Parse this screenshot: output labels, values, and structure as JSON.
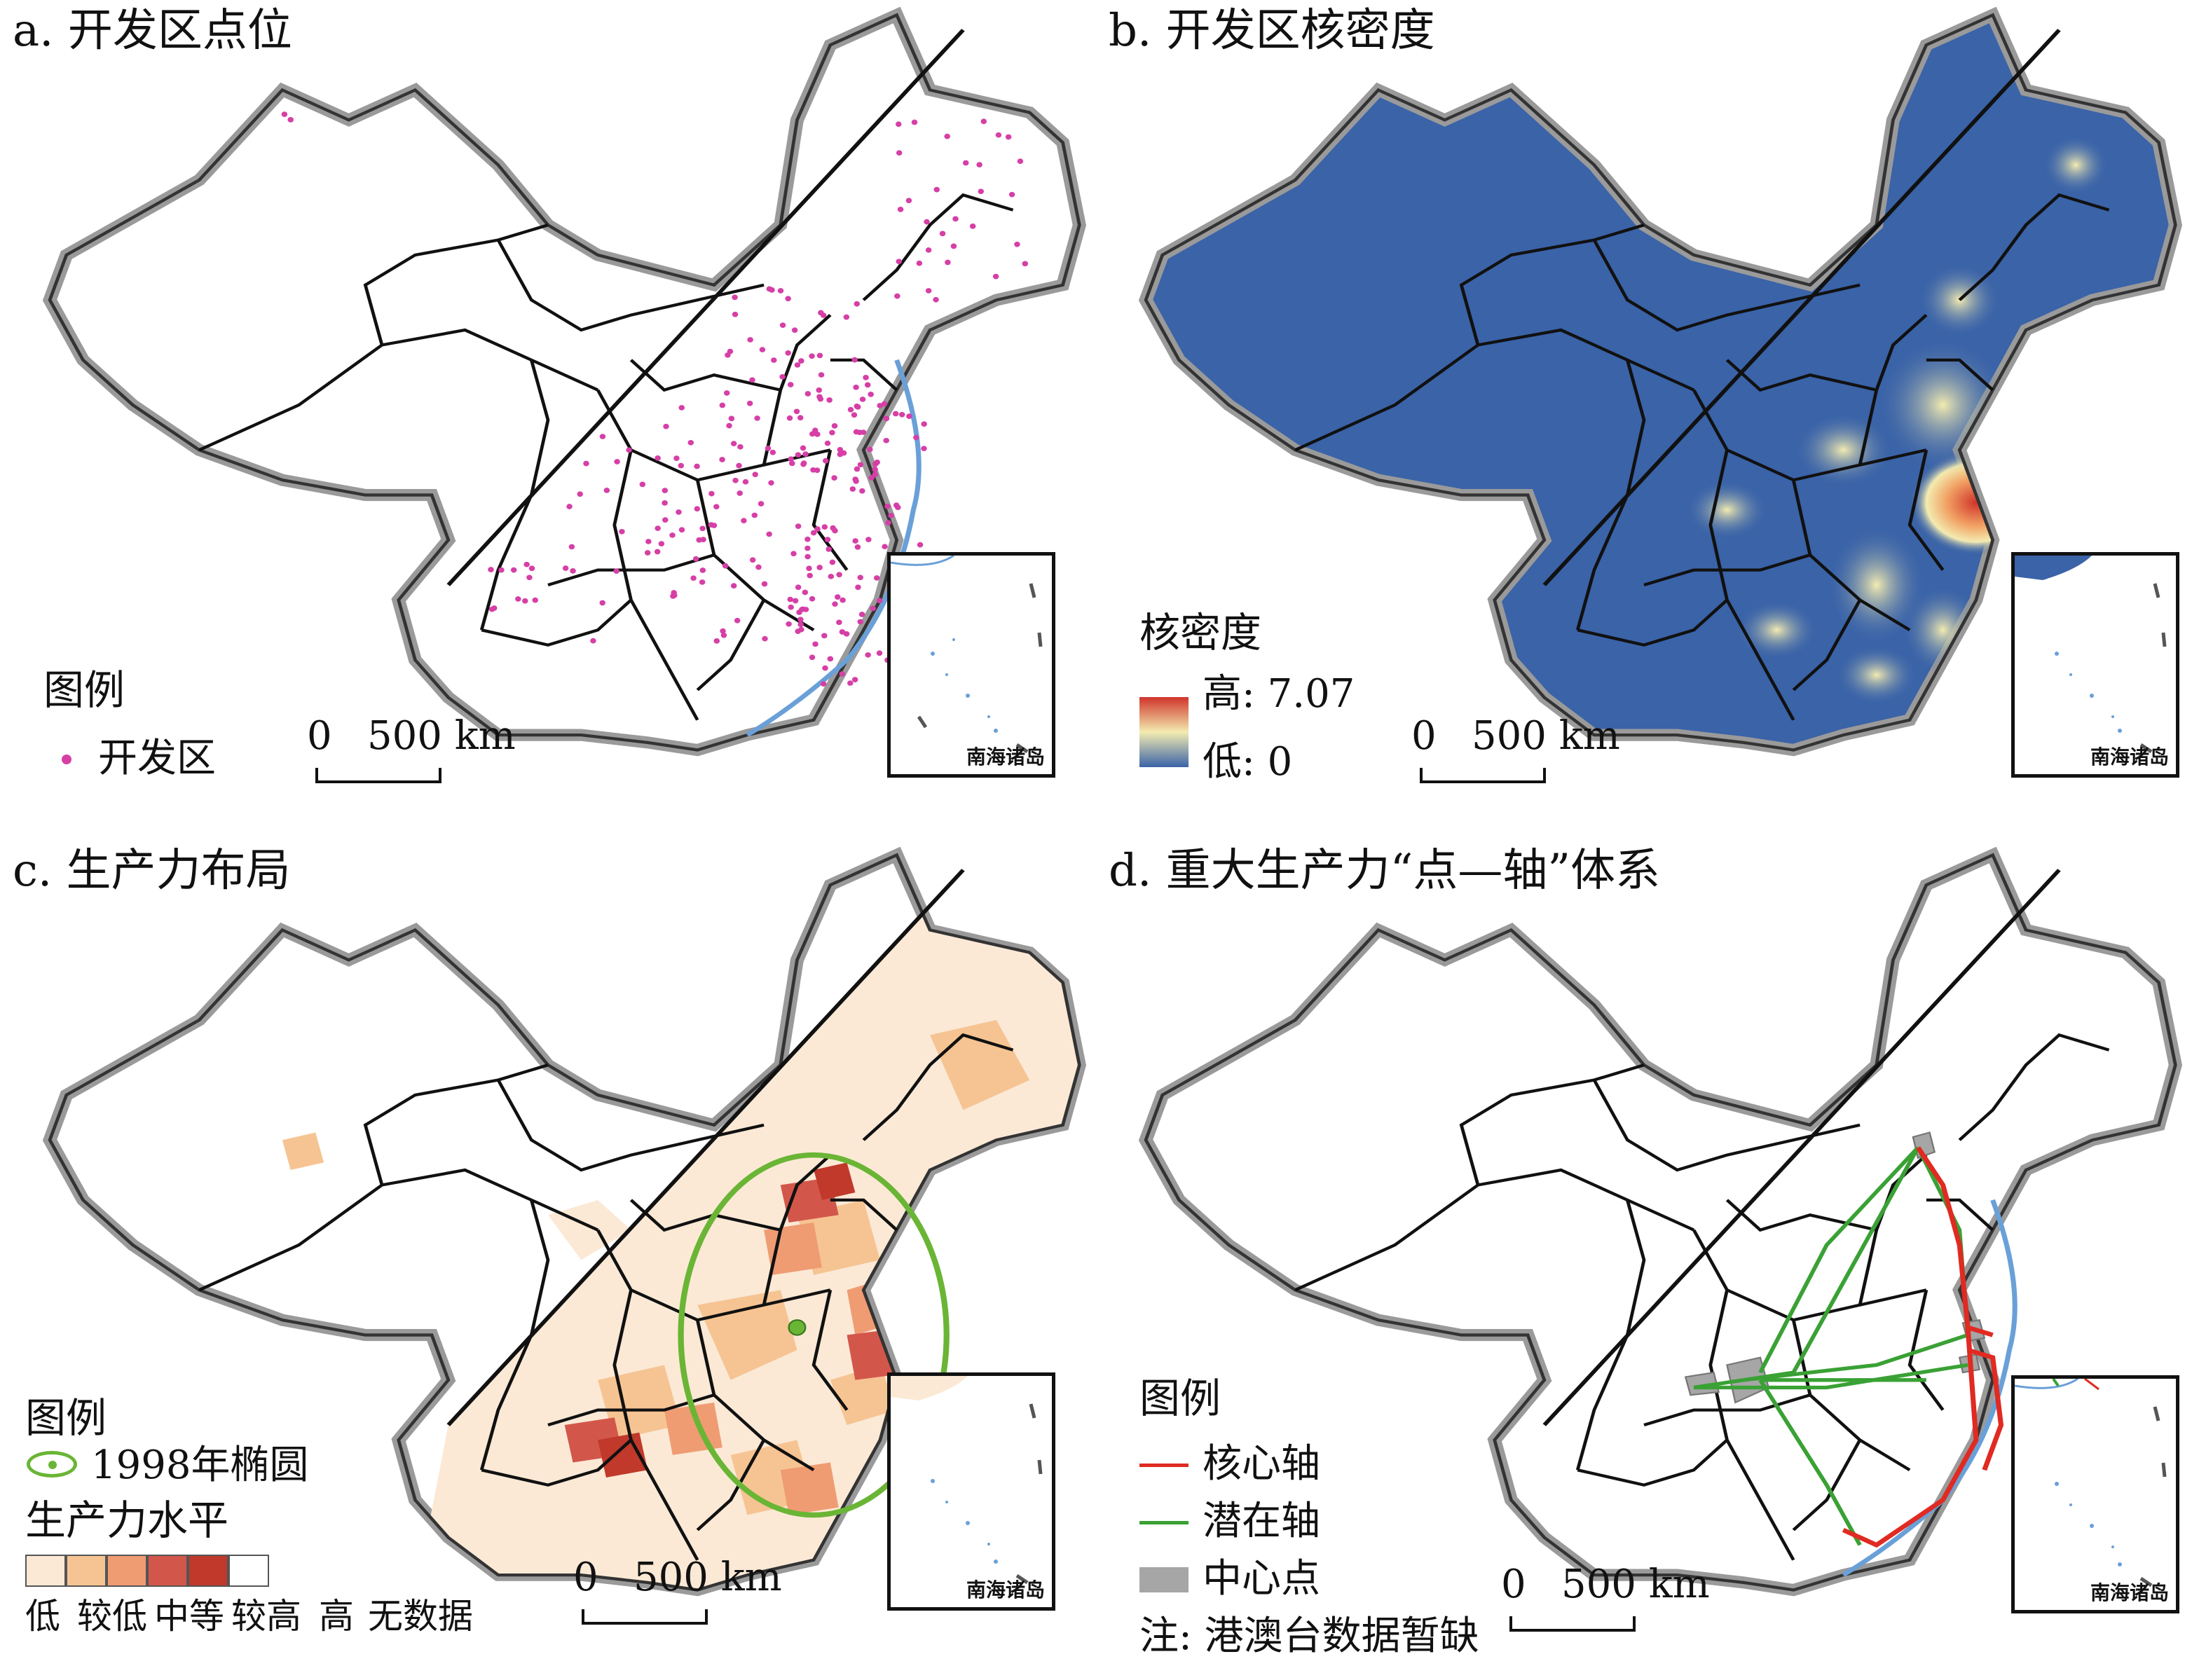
{
  "figure": {
    "panels": [
      {
        "id": "a",
        "title": "a. 开发区点位"
      },
      {
        "id": "b",
        "title": "b. 开发区核密度"
      },
      {
        "id": "c",
        "title": "c. 生产力布局"
      },
      {
        "id": "d",
        "title": "d. 重大生产力“点—轴”体系"
      }
    ]
  },
  "common": {
    "inset_label": "南海诸岛",
    "scale_zero": "0",
    "scale_label": "500 km"
  },
  "panel_a": {
    "legend_title": "图例",
    "legend_item": "开发区",
    "point_color": "#d63fa6"
  },
  "panel_b": {
    "legend_title": "核密度",
    "high_label": "高: 7.07",
    "low_label": "低: 0",
    "colors": {
      "low": "#3a63a8",
      "mid": "#f3ebb0",
      "high": "#d0342a"
    }
  },
  "panel_c": {
    "legend_title": "图例",
    "ellipse_label": "1998年椭圆",
    "level_title": "生产力水平",
    "classes": [
      {
        "label": "低",
        "color": "#fbe9d6"
      },
      {
        "label": "较低",
        "color": "#f6c493"
      },
      {
        "label": "中等",
        "color": "#ef9c73"
      },
      {
        "label": "较高",
        "color": "#d2574a"
      },
      {
        "label": "高",
        "color": "#c0392b"
      },
      {
        "label": "无数据",
        "color": "#ffffff"
      }
    ],
    "ellipse_color": "#6ab535"
  },
  "panel_d": {
    "legend_title": "图例",
    "core_axis": "核心轴",
    "potential_axis": "潜在轴",
    "center_point": "中心点",
    "note": "注: 港澳台数据暂缺",
    "colors": {
      "core": "#e02a22",
      "potential": "#3aa135",
      "center": "#a6a6a6"
    }
  }
}
